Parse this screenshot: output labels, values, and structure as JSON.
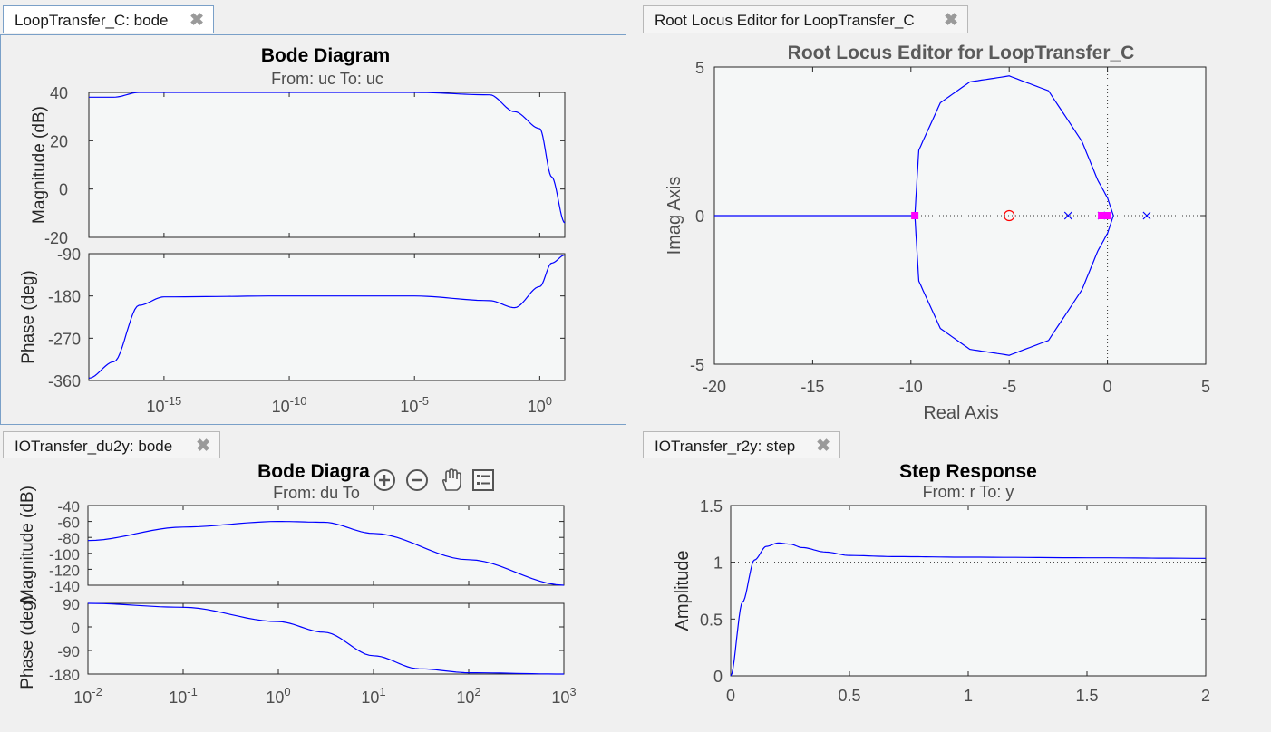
{
  "panels": {
    "bode_c": {
      "tab_label": "LoopTransfer_C: bode",
      "title": "Bode Diagram",
      "subtitle": "From: uc  To: uc",
      "mag_ylabel": "Magnitude (dB)",
      "phase_ylabel": "Phase (deg)",
      "mag_ticks": [
        "40",
        "20",
        "0",
        "-20"
      ],
      "phase_ticks": [
        "-90",
        "-180",
        "-270",
        "-360"
      ],
      "x_ticks": [
        {
          "base": "10",
          "exp": "-15"
        },
        {
          "base": "10",
          "exp": "-10"
        },
        {
          "base": "10",
          "exp": "-5"
        },
        {
          "base": "10",
          "exp": "0"
        }
      ]
    },
    "rlocus": {
      "tab_label": "Root Locus Editor for LoopTransfer_C",
      "title": "Root Locus Editor for LoopTransfer_C",
      "xlabel": "Real Axis",
      "ylabel": "Imag Axis",
      "x_ticks": [
        "-20",
        "-15",
        "-10",
        "-5",
        "0",
        "5"
      ],
      "y_ticks": [
        "5",
        "0",
        "-5"
      ]
    },
    "bode_du2y": {
      "tab_label": "IOTransfer_du2y: bode",
      "title": "Bode Diagra",
      "subtitle": "From: du  To",
      "mag_ylabel": "Magnitude (dB)",
      "phase_ylabel": "Phase (deg)",
      "mag_ticks": [
        "-40",
        "-60",
        "-80",
        "-100",
        "-120",
        "-140"
      ],
      "phase_ticks": [
        "90",
        "0",
        "-90",
        "-180"
      ],
      "x_ticks": [
        {
          "base": "10",
          "exp": "-2"
        },
        {
          "base": "10",
          "exp": "-1"
        },
        {
          "base": "10",
          "exp": "0"
        },
        {
          "base": "10",
          "exp": "1"
        },
        {
          "base": "10",
          "exp": "2"
        },
        {
          "base": "10",
          "exp": "3"
        }
      ]
    },
    "step": {
      "tab_label": "IOTransfer_r2y: step",
      "title": "Step Response",
      "subtitle": "From: r  To: y",
      "ylabel": "Amplitude",
      "x_ticks": [
        "0",
        "0.5",
        "1",
        "1.5",
        "2"
      ],
      "y_ticks": [
        "1.5",
        "1",
        "0.5",
        "0"
      ]
    }
  },
  "toolbar_icons": [
    "zoom-in-icon",
    "zoom-out-icon",
    "pan-hand-icon",
    "data-cursor-icon"
  ],
  "colors": {
    "curve": "#0000ff",
    "axes_bg": "#f5f7f7",
    "zero_marker": "#ff0000",
    "pole_marker": "#0000ff",
    "closed_loop_marker": "#ff00ff",
    "tab_active_border": "#7aa0c8"
  },
  "chart_data": [
    {
      "type": "line",
      "title": "Bode Diagram",
      "subtitle": "From: uc  To: uc",
      "xlabel": "",
      "xscale": "log",
      "xlim": [
        1e-18,
        10.0
      ],
      "subplots": [
        {
          "ylabel": "Magnitude (dB)",
          "ylim": [
            -20,
            40
          ],
          "x": [
            1e-18,
            1e-17,
            1e-16,
            1e-15,
            1e-10,
            1e-05,
            0.01,
            0.1,
            1,
            3,
            10
          ],
          "y": [
            38,
            38,
            40,
            40,
            40,
            40,
            39,
            32,
            25,
            5,
            -14
          ]
        },
        {
          "ylabel": "Phase (deg)",
          "ylim": [
            -360,
            -90
          ],
          "x": [
            1e-18,
            1e-17,
            1e-16,
            1e-15,
            1e-10,
            1e-05,
            0.01,
            0.1,
            1,
            3,
            10
          ],
          "y": [
            -355,
            -320,
            -200,
            -182,
            -180,
            -180,
            -190,
            -205,
            -160,
            -110,
            -93
          ]
        }
      ]
    },
    {
      "type": "scatter",
      "title": "Root Locus Editor for LoopTransfer_C",
      "xlabel": "Real Axis",
      "ylabel": "Imag Axis",
      "xlim": [
        -20,
        5
      ],
      "ylim": [
        -5,
        5
      ],
      "open_loop_zeros": [
        [
          -5,
          0
        ]
      ],
      "open_loop_poles": [
        [
          -2,
          0
        ],
        [
          -0.3,
          0
        ],
        [
          0,
          0
        ],
        [
          2,
          0
        ]
      ],
      "closed_loop_poles": [
        [
          -9.8,
          0
        ],
        [
          -0.3,
          0
        ],
        [
          -0.1,
          0
        ],
        [
          0,
          0
        ]
      ],
      "locus_branches": [
        {
          "x": [
            -20,
            0.3
          ],
          "y": [
            0,
            0
          ]
        },
        {
          "x": [
            -9.8,
            -9.6,
            -8.5,
            -7,
            -5,
            -3,
            -1.3,
            -0.5,
            0,
            0.3
          ],
          "y": [
            0,
            2.2,
            3.8,
            4.5,
            4.7,
            4.2,
            2.5,
            1.2,
            0.6,
            0
          ]
        },
        {
          "x": [
            -9.8,
            -9.6,
            -8.5,
            -7,
            -5,
            -3,
            -1.3,
            -0.5,
            0,
            0.3
          ],
          "y": [
            0,
            -2.2,
            -3.8,
            -4.5,
            -4.7,
            -4.2,
            -2.5,
            -1.2,
            -0.6,
            0
          ]
        }
      ]
    },
    {
      "type": "line",
      "title": "Bode Diagra",
      "subtitle": "From: du  To",
      "xscale": "log",
      "xlim": [
        0.01,
        1000
      ],
      "subplots": [
        {
          "ylabel": "Magnitude (dB)",
          "ylim": [
            -140,
            -40
          ],
          "x": [
            0.01,
            0.1,
            1,
            3,
            10,
            100,
            1000
          ],
          "y": [
            -84,
            -67,
            -60,
            -61,
            -75,
            -108,
            -140
          ]
        },
        {
          "ylabel": "Phase (deg)",
          "ylim": [
            -180,
            90
          ],
          "x": [
            0.01,
            0.1,
            1,
            3,
            10,
            30,
            100,
            1000
          ],
          "y": [
            90,
            75,
            20,
            -20,
            -110,
            -160,
            -175,
            -180
          ]
        }
      ]
    },
    {
      "type": "line",
      "title": "Step Response",
      "subtitle": "From: r  To: y",
      "xlabel": "",
      "ylabel": "Amplitude",
      "xlim": [
        0,
        2
      ],
      "ylim": [
        0,
        1.5
      ],
      "steady_state": 1,
      "series": [
        {
          "x": [
            0,
            0.05,
            0.1,
            0.15,
            0.2,
            0.25,
            0.3,
            0.4,
            0.5,
            0.7,
            1.0,
            1.5,
            2.0
          ],
          "y": [
            0,
            0.65,
            1.02,
            1.14,
            1.17,
            1.16,
            1.13,
            1.09,
            1.06,
            1.05,
            1.045,
            1.04,
            1.035
          ]
        }
      ]
    }
  ]
}
